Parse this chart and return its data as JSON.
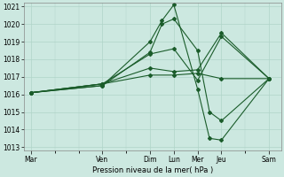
{
  "background_color": "#cce8e0",
  "grid_color": "#b0d4c8",
  "line_color": "#1a5c2a",
  "xtick_labels": [
    "Mar",
    "Ven",
    "Dim",
    "Lun",
    "Mer",
    "Jeu",
    "Sam"
  ],
  "xtick_positions": [
    0,
    3,
    5,
    6,
    7,
    8,
    10
  ],
  "ytick_min": 1013,
  "ytick_max": 1021,
  "xlabel": "Pression niveau de la mer( hPa )",
  "series": [
    {
      "x": [
        0,
        3,
        5,
        5.5,
        6,
        7,
        7.5,
        8,
        10
      ],
      "y": [
        1016.1,
        1016.5,
        1019.0,
        1020.2,
        1021.1,
        1016.3,
        1013.5,
        1013.4,
        1016.9
      ]
    },
    {
      "x": [
        0,
        3,
        5,
        5.5,
        6,
        7,
        7.5,
        8,
        10
      ],
      "y": [
        1016.1,
        1016.5,
        1018.4,
        1020.0,
        1020.3,
        1018.5,
        1015.0,
        1014.5,
        1016.9
      ]
    },
    {
      "x": [
        0,
        3,
        5,
        6,
        7,
        8,
        10
      ],
      "y": [
        1016.1,
        1016.6,
        1018.3,
        1018.6,
        1016.8,
        1019.3,
        1016.9
      ]
    },
    {
      "x": [
        0,
        3,
        5,
        6,
        7,
        8,
        10
      ],
      "y": [
        1016.1,
        1016.6,
        1017.5,
        1017.3,
        1017.4,
        1019.5,
        1016.9
      ]
    },
    {
      "x": [
        0,
        3,
        5,
        6,
        7,
        8,
        10
      ],
      "y": [
        1016.1,
        1016.6,
        1017.1,
        1017.1,
        1017.2,
        1016.9,
        1016.9
      ]
    }
  ],
  "figsize": [
    3.2,
    2.0
  ],
  "dpi": 100
}
